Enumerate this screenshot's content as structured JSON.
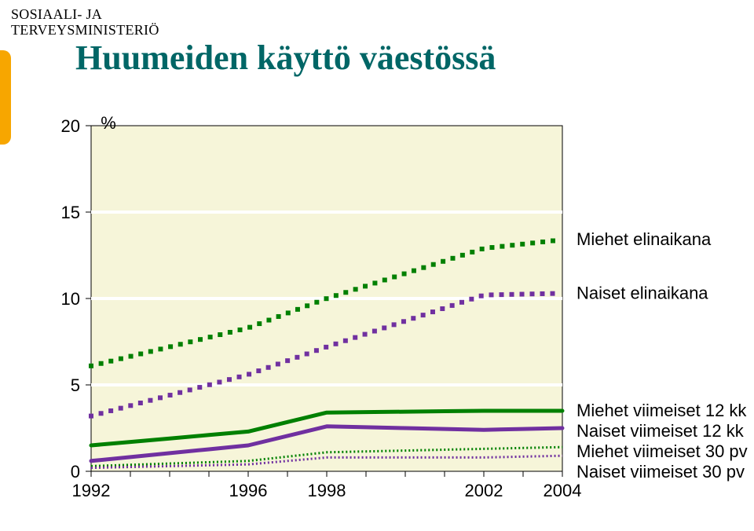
{
  "ministry_line1": "SOSIAALI- JA",
  "ministry_line2": "TERVEYSMINISTERIÖ",
  "title": "Huumeiden käyttö väestössä",
  "title_color": "#006666",
  "chart": {
    "type": "line",
    "background_color": "#f6f5d9",
    "grid_color": "#ffffff",
    "axis_color": "#000000",
    "percent_label": "%",
    "x_years": [
      1992,
      1996,
      1998,
      2002,
      2004
    ],
    "x_positions": [
      1992,
      1993,
      1994,
      1995,
      1996,
      1997,
      1998,
      1999,
      2000,
      2001,
      2002,
      2003,
      2004
    ],
    "ylim": [
      0,
      20
    ],
    "ytick_step": 5,
    "yticks": [
      0,
      5,
      10,
      15,
      20
    ],
    "label_fontsize": 22,
    "tick_fontsize": 22,
    "series": [
      {
        "key": "miehet_elinaikana",
        "label": "Miehet elinaikana",
        "color": "#008000",
        "style": "square-dash",
        "width": 5,
        "data": {
          "1992": 6.1,
          "1996": 8.3,
          "1998": 10.0,
          "2002": 12.9,
          "2004": 13.4
        }
      },
      {
        "key": "naiset_elinaikana",
        "label": "Naiset elinaikana",
        "color": "#7030a0",
        "style": "square-dash",
        "width": 5,
        "data": {
          "1992": 3.2,
          "1996": 5.6,
          "1998": 7.2,
          "2002": 10.2,
          "2004": 10.3
        }
      },
      {
        "key": "miehet_12kk",
        "label": "Miehet viimeiset 12 kk",
        "color": "#008000",
        "style": "solid",
        "width": 5,
        "data": {
          "1992": 1.5,
          "1996": 2.3,
          "1998": 3.4,
          "2002": 3.5,
          "2004": 3.5
        }
      },
      {
        "key": "naiset_12kk",
        "label": "Naiset viimeiset 12 kk",
        "color": "#7030a0",
        "style": "solid",
        "width": 5,
        "data": {
          "1992": 0.6,
          "1996": 1.5,
          "1998": 2.6,
          "2002": 2.4,
          "2004": 2.5
        }
      },
      {
        "key": "miehet_30pv",
        "label": "Miehet viimeiset 30 pv",
        "color": "#008000",
        "style": "fine-dash",
        "width": 3,
        "data": {
          "1992": 0.3,
          "1996": 0.6,
          "1998": 1.1,
          "2002": 1.3,
          "2004": 1.4
        }
      },
      {
        "key": "naiset_30pv",
        "label": "Naiset viimeiset 30 pv",
        "color": "#7030a0",
        "style": "fine-dash",
        "width": 3,
        "data": {
          "1992": 0.2,
          "1996": 0.4,
          "1998": 0.8,
          "2002": 0.8,
          "2004": 0.9
        }
      }
    ],
    "legend": [
      {
        "series": "miehet_elinaikana",
        "y": 13.4
      },
      {
        "series": "naiset_elinaikana",
        "y": 10.3
      },
      {
        "series": "miehet_12kk",
        "y": 3.5
      },
      {
        "series": "naiset_12kk",
        "y": 2.5
      },
      {
        "series": "miehet_30pv",
        "y": 1.4
      },
      {
        "series": "naiset_30pv",
        "y": 0.5
      }
    ],
    "legend_fontsize": 22
  }
}
